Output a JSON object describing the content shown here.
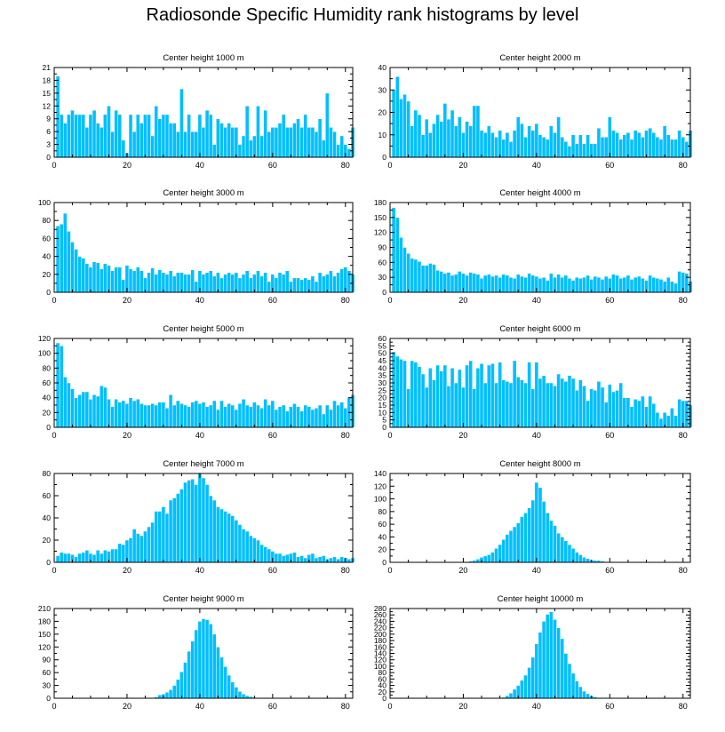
{
  "figure_title": "Radiosonde Specific Humidity rank histograms by level",
  "colors": {
    "bar": "#00BFFF",
    "axis": "#000000",
    "background": "#FFFFFF"
  },
  "chart_data": [
    {
      "type": "bar",
      "title": "Center height 1000 m",
      "xlim": [
        0,
        82
      ],
      "ylim": [
        0,
        21
      ],
      "xticks": [
        0,
        20,
        40,
        60,
        80
      ],
      "yticks": [
        0,
        3,
        6,
        9,
        12,
        15,
        18,
        21
      ],
      "values": [
        19,
        10,
        8,
        10,
        11,
        10,
        10,
        10,
        7,
        10,
        11,
        8,
        7,
        10,
        12,
        6,
        11,
        10,
        4,
        1,
        10,
        6,
        10,
        8,
        10,
        10,
        5,
        12,
        9,
        10,
        10,
        8,
        8,
        6,
        16,
        6,
        10,
        6,
        6,
        10,
        7,
        11,
        10,
        3,
        9,
        8,
        7,
        8,
        7,
        7,
        3,
        5,
        12,
        4,
        5,
        12,
        5,
        11,
        6,
        7,
        7,
        8,
        10,
        7,
        7,
        8,
        9,
        7,
        10,
        7,
        7,
        6,
        9,
        4,
        15,
        7,
        6,
        3,
        5,
        3,
        2,
        7
      ]
    },
    {
      "type": "bar",
      "title": "Center height 2000 m",
      "xlim": [
        0,
        82
      ],
      "ylim": [
        0,
        40
      ],
      "xticks": [
        0,
        20,
        40,
        60,
        80
      ],
      "yticks": [
        0,
        10,
        20,
        30,
        40
      ],
      "values": [
        30,
        36,
        26,
        28,
        25,
        14,
        21,
        19,
        10,
        17,
        11,
        15,
        19,
        16,
        24,
        17,
        21,
        14,
        18,
        11,
        16,
        14,
        23,
        23,
        12,
        11,
        14,
        11,
        9,
        12,
        8,
        11,
        7,
        12,
        18,
        15,
        9,
        14,
        12,
        15,
        10,
        9,
        8,
        14,
        11,
        18,
        9,
        7,
        5,
        10,
        6,
        10,
        6,
        10,
        6,
        6,
        13,
        9,
        9,
        18,
        12,
        11,
        8,
        10,
        11,
        8,
        12,
        11,
        9,
        12,
        13,
        11,
        9,
        8,
        14,
        10,
        8,
        8,
        12,
        9,
        7,
        12
      ]
    },
    {
      "type": "bar",
      "title": "Center height 3000 m",
      "xlim": [
        0,
        82
      ],
      "ylim": [
        0,
        100
      ],
      "xticks": [
        0,
        20,
        40,
        60,
        80
      ],
      "yticks": [
        0,
        20,
        40,
        60,
        80,
        100
      ],
      "values": [
        74,
        76,
        88,
        68,
        56,
        48,
        40,
        38,
        32,
        28,
        34,
        33,
        26,
        32,
        30,
        24,
        28,
        28,
        14,
        30,
        26,
        24,
        28,
        24,
        16,
        22,
        27,
        20,
        25,
        22,
        20,
        24,
        18,
        22,
        22,
        20,
        20,
        25,
        12,
        24,
        20,
        22,
        24,
        18,
        22,
        16,
        20,
        22,
        20,
        22,
        16,
        20,
        24,
        16,
        20,
        24,
        18,
        22,
        12,
        20,
        16,
        22,
        20,
        24,
        12,
        16,
        16,
        14,
        16,
        14,
        18,
        12,
        22,
        18,
        20,
        24,
        18,
        22,
        26,
        28,
        24,
        20
      ]
    },
    {
      "type": "bar",
      "title": "Center height 4000 m",
      "xlim": [
        0,
        82
      ],
      "ylim": [
        0,
        180
      ],
      "xticks": [
        0,
        20,
        40,
        60,
        80
      ],
      "yticks": [
        0,
        30,
        60,
        90,
        120,
        150,
        180
      ],
      "values": [
        170,
        150,
        110,
        90,
        78,
        68,
        66,
        62,
        54,
        54,
        58,
        56,
        44,
        42,
        38,
        40,
        34,
        36,
        42,
        38,
        34,
        40,
        38,
        36,
        28,
        34,
        36,
        32,
        34,
        30,
        36,
        34,
        30,
        28,
        36,
        32,
        30,
        38,
        34,
        32,
        28,
        30,
        24,
        38,
        30,
        36,
        30,
        34,
        28,
        24,
        30,
        28,
        30,
        34,
        26,
        32,
        30,
        26,
        32,
        28,
        36,
        34,
        28,
        30,
        34,
        26,
        30,
        32,
        28,
        24,
        34,
        30,
        28,
        26,
        22,
        30,
        22,
        18,
        42,
        40,
        38,
        22
      ]
    },
    {
      "type": "bar",
      "title": "Center height 5000 m",
      "xlim": [
        0,
        82
      ],
      "ylim": [
        0,
        120
      ],
      "xticks": [
        0,
        20,
        40,
        60,
        80
      ],
      "yticks": [
        0,
        20,
        40,
        60,
        80,
        100,
        120
      ],
      "values": [
        114,
        110,
        68,
        60,
        52,
        40,
        44,
        48,
        48,
        38,
        44,
        42,
        56,
        54,
        38,
        28,
        38,
        34,
        36,
        32,
        40,
        36,
        38,
        32,
        30,
        30,
        32,
        30,
        34,
        34,
        26,
        44,
        30,
        36,
        32,
        30,
        28,
        34,
        36,
        32,
        34,
        28,
        30,
        36,
        24,
        36,
        28,
        32,
        30,
        24,
        32,
        38,
        30,
        28,
        34,
        30,
        26,
        38,
        30,
        36,
        24,
        28,
        30,
        22,
        28,
        32,
        28,
        22,
        30,
        28,
        24,
        26,
        30,
        18,
        30,
        24,
        36,
        30,
        34,
        26,
        40,
        44
      ]
    },
    {
      "type": "bar",
      "title": "Center height 6000 m",
      "xlim": [
        0,
        82
      ],
      "ylim": [
        0,
        60
      ],
      "xticks": [
        0,
        20,
        40,
        60,
        80
      ],
      "yticks": [
        0,
        5,
        10,
        15,
        20,
        25,
        30,
        35,
        40,
        45,
        50,
        55,
        60
      ],
      "values": [
        51,
        48,
        46,
        45,
        26,
        45,
        44,
        41,
        36,
        27,
        40,
        32,
        42,
        38,
        42,
        28,
        40,
        30,
        39,
        27,
        42,
        45,
        26,
        40,
        43,
        30,
        42,
        43,
        30,
        44,
        32,
        31,
        30,
        45,
        34,
        32,
        30,
        44,
        26,
        44,
        33,
        35,
        30,
        30,
        28,
        36,
        33,
        31,
        35,
        33,
        25,
        32,
        28,
        18,
        26,
        25,
        31,
        27,
        17,
        29,
        24,
        25,
        30,
        20,
        20,
        14,
        19,
        18,
        21,
        14,
        21,
        16,
        10,
        6,
        10,
        8,
        13,
        8,
        19,
        18,
        18,
        15
      ]
    },
    {
      "type": "bar",
      "title": "Center height 7000 m",
      "xlim": [
        0,
        82
      ],
      "ylim": [
        0,
        80
      ],
      "xticks": [
        0,
        20,
        40,
        60,
        80
      ],
      "yticks": [
        0,
        20,
        40,
        60,
        80
      ],
      "values": [
        6,
        9,
        8,
        8,
        7,
        5,
        8,
        9,
        11,
        8,
        7,
        11,
        8,
        11,
        10,
        12,
        12,
        17,
        16,
        20,
        22,
        30,
        26,
        24,
        28,
        32,
        36,
        46,
        46,
        50,
        44,
        56,
        58,
        62,
        66,
        72,
        74,
        75,
        70,
        80,
        76,
        70,
        60,
        56,
        50,
        48,
        46,
        44,
        42,
        38,
        34,
        30,
        28,
        24,
        22,
        20,
        16,
        14,
        12,
        10,
        8,
        8,
        6,
        7,
        8,
        9,
        5,
        6,
        4,
        7,
        8,
        4,
        5,
        6,
        3,
        4,
        5,
        3,
        5,
        4,
        3,
        4
      ]
    },
    {
      "type": "bar",
      "title": "Center height 8000 m",
      "xlim": [
        0,
        82
      ],
      "ylim": [
        0,
        140
      ],
      "xticks": [
        0,
        20,
        40,
        60,
        80
      ],
      "yticks": [
        0,
        20,
        40,
        60,
        80,
        100,
        120,
        140
      ],
      "values": [
        0,
        0,
        0,
        0,
        0,
        0,
        0,
        0,
        0,
        0,
        0,
        0,
        0,
        0,
        0,
        0,
        0,
        0,
        0,
        0,
        1,
        2,
        3,
        5,
        8,
        10,
        12,
        16,
        22,
        28,
        36,
        44,
        50,
        56,
        62,
        72,
        78,
        86,
        98,
        126,
        118,
        96,
        78,
        66,
        58,
        46,
        40,
        34,
        28,
        22,
        16,
        12,
        8,
        6,
        4,
        3,
        3,
        2,
        1,
        1,
        1,
        0,
        0,
        0,
        0,
        0,
        0,
        0,
        0,
        0,
        0,
        0,
        0,
        0,
        0,
        0,
        0,
        0,
        0,
        0,
        0,
        0
      ]
    },
    {
      "type": "bar",
      "title": "Center height 9000 m",
      "xlim": [
        0,
        82
      ],
      "ylim": [
        0,
        210
      ],
      "xticks": [
        0,
        20,
        40,
        60,
        80
      ],
      "yticks": [
        0,
        30,
        60,
        90,
        120,
        150,
        180,
        210
      ],
      "values": [
        0,
        0,
        0,
        0,
        0,
        0,
        0,
        0,
        0,
        0,
        0,
        0,
        0,
        0,
        0,
        0,
        0,
        0,
        0,
        0,
        0,
        0,
        0,
        0,
        0,
        0,
        1,
        3,
        8,
        10,
        14,
        20,
        30,
        44,
        62,
        84,
        110,
        134,
        160,
        180,
        186,
        184,
        174,
        150,
        120,
        96,
        74,
        54,
        38,
        26,
        16,
        10,
        6,
        4,
        2,
        1,
        1,
        0,
        0,
        0,
        0,
        0,
        0,
        0,
        0,
        0,
        0,
        0,
        0,
        0,
        0,
        0,
        0,
        0,
        0,
        0,
        0,
        0,
        0,
        0,
        0,
        0
      ]
    },
    {
      "type": "bar",
      "title": "Center height 10000 m",
      "xlim": [
        0,
        82
      ],
      "ylim": [
        0,
        280
      ],
      "xticks": [
        0,
        20,
        40,
        60,
        80
      ],
      "yticks": [
        0,
        20,
        40,
        60,
        80,
        100,
        120,
        140,
        160,
        180,
        200,
        220,
        240,
        260,
        280
      ],
      "values": [
        0,
        0,
        0,
        0,
        0,
        0,
        0,
        0,
        0,
        0,
        0,
        0,
        0,
        0,
        0,
        0,
        0,
        0,
        0,
        0,
        0,
        0,
        0,
        0,
        0,
        0,
        0,
        0,
        0,
        0,
        3,
        8,
        16,
        28,
        40,
        56,
        72,
        96,
        128,
        170,
        206,
        240,
        262,
        270,
        246,
        220,
        186,
        140,
        108,
        78,
        54,
        36,
        22,
        14,
        8,
        4,
        2,
        1,
        0,
        0,
        0,
        0,
        0,
        0,
        0,
        0,
        0,
        0,
        0,
        0,
        0,
        0,
        0,
        0,
        0,
        0,
        0,
        0,
        0,
        0,
        0,
        0
      ]
    }
  ]
}
